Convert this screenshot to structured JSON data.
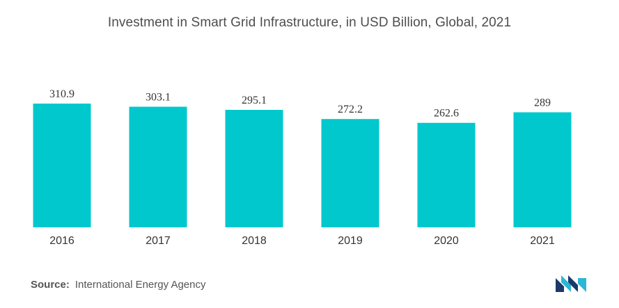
{
  "chart_data": {
    "type": "bar",
    "title": "Investment in Smart Grid Infrastructure, in USD Billion, Global, 2021",
    "categories": [
      "2016",
      "2017",
      "2018",
      "2019",
      "2020",
      "2021"
    ],
    "values": [
      310.9,
      303.1,
      295.1,
      272.2,
      262.6,
      289
    ],
    "value_labels": [
      "310.9",
      "303.1",
      "295.1",
      "272.2",
      "262.6",
      "289"
    ],
    "xlabel": "",
    "ylabel": "",
    "ylim": [
      0,
      310.9
    ],
    "grid": false,
    "legend": "none",
    "bar_color": "#00c8cc"
  },
  "source": {
    "label": "Source:",
    "text": "International Energy Agency"
  },
  "logo": {
    "icon": "mordor-intelligence-logo",
    "colors": [
      "#1b3a6b",
      "#2bb7d6"
    ]
  }
}
